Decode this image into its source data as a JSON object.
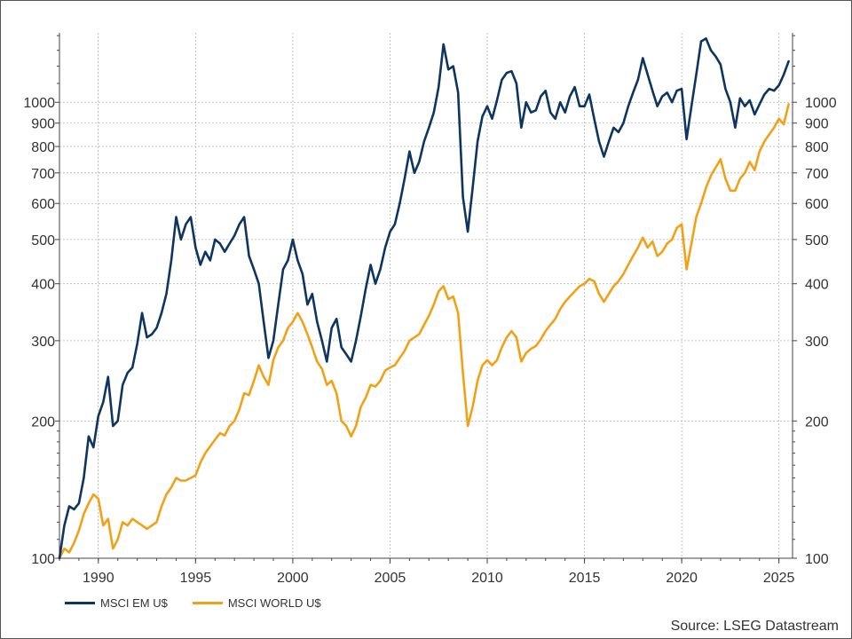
{
  "chart_data": {
    "type": "line",
    "title": "",
    "xlabel": "",
    "ylabel": "",
    "y_scale": "log",
    "ylim": [
      100,
      1420
    ],
    "xlim": [
      1988.0,
      2025.7
    ],
    "x_ticks": [
      1990,
      1995,
      2000,
      2005,
      2010,
      2015,
      2020,
      2025
    ],
    "y_ticks": [
      100,
      200,
      300,
      400,
      500,
      600,
      700,
      800,
      900,
      1000
    ],
    "y_axes": "left-and-right",
    "grid": true,
    "legend_position": "bottom-left",
    "source": "Source: LSEG Datastream",
    "series": [
      {
        "name": "MSCI EM U$",
        "color": "#0d3560",
        "points": [
          [
            1988.0,
            100
          ],
          [
            1988.25,
            118
          ],
          [
            1988.5,
            130
          ],
          [
            1988.75,
            128
          ],
          [
            1989.0,
            132
          ],
          [
            1989.25,
            150
          ],
          [
            1989.5,
            185
          ],
          [
            1989.75,
            175
          ],
          [
            1990.0,
            205
          ],
          [
            1990.25,
            220
          ],
          [
            1990.5,
            250
          ],
          [
            1990.75,
            195
          ],
          [
            1991.0,
            200
          ],
          [
            1991.25,
            240
          ],
          [
            1991.5,
            255
          ],
          [
            1991.75,
            262
          ],
          [
            1992.0,
            295
          ],
          [
            1992.25,
            345
          ],
          [
            1992.5,
            305
          ],
          [
            1992.75,
            310
          ],
          [
            1993.0,
            320
          ],
          [
            1993.25,
            345
          ],
          [
            1993.5,
            380
          ],
          [
            1993.75,
            450
          ],
          [
            1994.0,
            560
          ],
          [
            1994.25,
            500
          ],
          [
            1994.5,
            540
          ],
          [
            1994.75,
            560
          ],
          [
            1995.0,
            480
          ],
          [
            1995.25,
            440
          ],
          [
            1995.5,
            470
          ],
          [
            1995.75,
            450
          ],
          [
            1996.0,
            500
          ],
          [
            1996.25,
            490
          ],
          [
            1996.5,
            470
          ],
          [
            1996.75,
            490
          ],
          [
            1997.0,
            510
          ],
          [
            1997.25,
            540
          ],
          [
            1997.5,
            560
          ],
          [
            1997.75,
            460
          ],
          [
            1998.0,
            430
          ],
          [
            1998.25,
            400
          ],
          [
            1998.5,
            330
          ],
          [
            1998.75,
            275
          ],
          [
            1999.0,
            300
          ],
          [
            1999.25,
            360
          ],
          [
            1999.5,
            430
          ],
          [
            1999.75,
            450
          ],
          [
            2000.0,
            500
          ],
          [
            2000.25,
            450
          ],
          [
            2000.5,
            420
          ],
          [
            2000.75,
            360
          ],
          [
            2001.0,
            380
          ],
          [
            2001.25,
            330
          ],
          [
            2001.5,
            300
          ],
          [
            2001.75,
            270
          ],
          [
            2002.0,
            320
          ],
          [
            2002.25,
            335
          ],
          [
            2002.5,
            290
          ],
          [
            2002.75,
            280
          ],
          [
            2003.0,
            270
          ],
          [
            2003.25,
            300
          ],
          [
            2003.5,
            340
          ],
          [
            2003.75,
            390
          ],
          [
            2004.0,
            440
          ],
          [
            2004.25,
            400
          ],
          [
            2004.5,
            430
          ],
          [
            2004.75,
            480
          ],
          [
            2005.0,
            520
          ],
          [
            2005.25,
            540
          ],
          [
            2005.5,
            600
          ],
          [
            2005.75,
            680
          ],
          [
            2006.0,
            780
          ],
          [
            2006.25,
            700
          ],
          [
            2006.5,
            740
          ],
          [
            2006.75,
            820
          ],
          [
            2007.0,
            880
          ],
          [
            2007.25,
            950
          ],
          [
            2007.5,
            1080
          ],
          [
            2007.75,
            1340
          ],
          [
            2008.0,
            1180
          ],
          [
            2008.25,
            1200
          ],
          [
            2008.5,
            1050
          ],
          [
            2008.75,
            620
          ],
          [
            2009.0,
            520
          ],
          [
            2009.25,
            650
          ],
          [
            2009.5,
            820
          ],
          [
            2009.75,
            930
          ],
          [
            2010.0,
            980
          ],
          [
            2010.25,
            920
          ],
          [
            2010.5,
            1010
          ],
          [
            2010.75,
            1120
          ],
          [
            2011.0,
            1160
          ],
          [
            2011.25,
            1170
          ],
          [
            2011.5,
            1100
          ],
          [
            2011.75,
            880
          ],
          [
            2012.0,
            1000
          ],
          [
            2012.25,
            950
          ],
          [
            2012.5,
            960
          ],
          [
            2012.75,
            1030
          ],
          [
            2013.0,
            1060
          ],
          [
            2013.25,
            950
          ],
          [
            2013.5,
            920
          ],
          [
            2013.75,
            1000
          ],
          [
            2014.0,
            950
          ],
          [
            2014.25,
            1030
          ],
          [
            2014.5,
            1080
          ],
          [
            2014.75,
            980
          ],
          [
            2015.0,
            980
          ],
          [
            2015.25,
            1040
          ],
          [
            2015.5,
            920
          ],
          [
            2015.75,
            820
          ],
          [
            2016.0,
            760
          ],
          [
            2016.25,
            820
          ],
          [
            2016.5,
            880
          ],
          [
            2016.75,
            860
          ],
          [
            2017.0,
            900
          ],
          [
            2017.25,
            980
          ],
          [
            2017.5,
            1050
          ],
          [
            2017.75,
            1120
          ],
          [
            2018.0,
            1250
          ],
          [
            2018.25,
            1150
          ],
          [
            2018.5,
            1060
          ],
          [
            2018.75,
            980
          ],
          [
            2019.0,
            1030
          ],
          [
            2019.25,
            1050
          ],
          [
            2019.5,
            1000
          ],
          [
            2019.75,
            1060
          ],
          [
            2020.0,
            1070
          ],
          [
            2020.25,
            830
          ],
          [
            2020.5,
            980
          ],
          [
            2020.75,
            1150
          ],
          [
            2021.0,
            1360
          ],
          [
            2021.25,
            1380
          ],
          [
            2021.5,
            1300
          ],
          [
            2021.75,
            1260
          ],
          [
            2022.0,
            1210
          ],
          [
            2022.25,
            1070
          ],
          [
            2022.5,
            1000
          ],
          [
            2022.75,
            880
          ],
          [
            2023.0,
            1020
          ],
          [
            2023.25,
            980
          ],
          [
            2023.5,
            1010
          ],
          [
            2023.75,
            940
          ],
          [
            2024.0,
            990
          ],
          [
            2024.25,
            1040
          ],
          [
            2024.5,
            1070
          ],
          [
            2024.75,
            1060
          ],
          [
            2025.0,
            1090
          ],
          [
            2025.25,
            1150
          ],
          [
            2025.5,
            1230
          ]
        ]
      },
      {
        "name": "MSCI WORLD U$",
        "color": "#f2a116",
        "points": [
          [
            1988.0,
            100
          ],
          [
            1988.25,
            105
          ],
          [
            1988.5,
            103
          ],
          [
            1988.75,
            108
          ],
          [
            1989.0,
            115
          ],
          [
            1989.25,
            125
          ],
          [
            1989.5,
            132
          ],
          [
            1989.75,
            138
          ],
          [
            1990.0,
            135
          ],
          [
            1990.25,
            118
          ],
          [
            1990.5,
            122
          ],
          [
            1990.75,
            105
          ],
          [
            1991.0,
            110
          ],
          [
            1991.25,
            120
          ],
          [
            1991.5,
            118
          ],
          [
            1991.75,
            122
          ],
          [
            1992.0,
            120
          ],
          [
            1992.25,
            118
          ],
          [
            1992.5,
            116
          ],
          [
            1992.75,
            118
          ],
          [
            1993.0,
            120
          ],
          [
            1993.25,
            130
          ],
          [
            1993.5,
            138
          ],
          [
            1993.75,
            143
          ],
          [
            1994.0,
            150
          ],
          [
            1994.25,
            148
          ],
          [
            1994.5,
            148
          ],
          [
            1994.75,
            150
          ],
          [
            1995.0,
            152
          ],
          [
            1995.25,
            162
          ],
          [
            1995.5,
            170
          ],
          [
            1995.75,
            176
          ],
          [
            1996.0,
            182
          ],
          [
            1996.25,
            188
          ],
          [
            1996.5,
            186
          ],
          [
            1996.75,
            195
          ],
          [
            1997.0,
            200
          ],
          [
            1997.25,
            212
          ],
          [
            1997.5,
            230
          ],
          [
            1997.75,
            228
          ],
          [
            1998.0,
            245
          ],
          [
            1998.25,
            265
          ],
          [
            1998.5,
            250
          ],
          [
            1998.75,
            240
          ],
          [
            1999.0,
            272
          ],
          [
            1999.25,
            290
          ],
          [
            1999.5,
            300
          ],
          [
            1999.75,
            320
          ],
          [
            2000.0,
            330
          ],
          [
            2000.25,
            345
          ],
          [
            2000.5,
            330
          ],
          [
            2000.75,
            310
          ],
          [
            2001.0,
            290
          ],
          [
            2001.25,
            270
          ],
          [
            2001.5,
            260
          ],
          [
            2001.75,
            240
          ],
          [
            2002.0,
            245
          ],
          [
            2002.25,
            230
          ],
          [
            2002.5,
            200
          ],
          [
            2002.75,
            195
          ],
          [
            2003.0,
            185
          ],
          [
            2003.25,
            195
          ],
          [
            2003.5,
            215
          ],
          [
            2003.75,
            225
          ],
          [
            2004.0,
            240
          ],
          [
            2004.25,
            238
          ],
          [
            2004.5,
            245
          ],
          [
            2004.75,
            258
          ],
          [
            2005.0,
            262
          ],
          [
            2005.25,
            265
          ],
          [
            2005.5,
            275
          ],
          [
            2005.75,
            285
          ],
          [
            2006.0,
            300
          ],
          [
            2006.25,
            305
          ],
          [
            2006.5,
            310
          ],
          [
            2006.75,
            325
          ],
          [
            2007.0,
            340
          ],
          [
            2007.25,
            360
          ],
          [
            2007.5,
            385
          ],
          [
            2007.75,
            395
          ],
          [
            2008.0,
            370
          ],
          [
            2008.25,
            375
          ],
          [
            2008.5,
            345
          ],
          [
            2008.75,
            255
          ],
          [
            2009.0,
            195
          ],
          [
            2009.25,
            215
          ],
          [
            2009.5,
            245
          ],
          [
            2009.75,
            265
          ],
          [
            2010.0,
            272
          ],
          [
            2010.25,
            265
          ],
          [
            2010.5,
            272
          ],
          [
            2010.75,
            290
          ],
          [
            2011.0,
            305
          ],
          [
            2011.25,
            315
          ],
          [
            2011.5,
            305
          ],
          [
            2011.75,
            270
          ],
          [
            2012.0,
            282
          ],
          [
            2012.25,
            288
          ],
          [
            2012.5,
            292
          ],
          [
            2012.75,
            302
          ],
          [
            2013.0,
            315
          ],
          [
            2013.25,
            325
          ],
          [
            2013.5,
            335
          ],
          [
            2013.75,
            352
          ],
          [
            2014.0,
            365
          ],
          [
            2014.25,
            375
          ],
          [
            2014.5,
            385
          ],
          [
            2014.75,
            395
          ],
          [
            2015.0,
            400
          ],
          [
            2015.25,
            410
          ],
          [
            2015.5,
            405
          ],
          [
            2015.75,
            380
          ],
          [
            2016.0,
            365
          ],
          [
            2016.25,
            380
          ],
          [
            2016.5,
            395
          ],
          [
            2016.75,
            405
          ],
          [
            2017.0,
            420
          ],
          [
            2017.25,
            440
          ],
          [
            2017.5,
            460
          ],
          [
            2017.75,
            480
          ],
          [
            2018.0,
            505
          ],
          [
            2018.25,
            480
          ],
          [
            2018.5,
            495
          ],
          [
            2018.75,
            460
          ],
          [
            2019.0,
            470
          ],
          [
            2019.25,
            490
          ],
          [
            2019.5,
            500
          ],
          [
            2019.75,
            530
          ],
          [
            2020.0,
            540
          ],
          [
            2020.25,
            430
          ],
          [
            2020.5,
            490
          ],
          [
            2020.75,
            560
          ],
          [
            2021.0,
            600
          ],
          [
            2021.25,
            650
          ],
          [
            2021.5,
            690
          ],
          [
            2021.75,
            720
          ],
          [
            2022.0,
            750
          ],
          [
            2022.25,
            680
          ],
          [
            2022.5,
            640
          ],
          [
            2022.75,
            640
          ],
          [
            2023.0,
            680
          ],
          [
            2023.25,
            700
          ],
          [
            2023.5,
            740
          ],
          [
            2023.75,
            710
          ],
          [
            2024.0,
            780
          ],
          [
            2024.25,
            820
          ],
          [
            2024.5,
            850
          ],
          [
            2024.75,
            880
          ],
          [
            2025.0,
            920
          ],
          [
            2025.25,
            895
          ],
          [
            2025.5,
            990
          ]
        ]
      }
    ]
  }
}
